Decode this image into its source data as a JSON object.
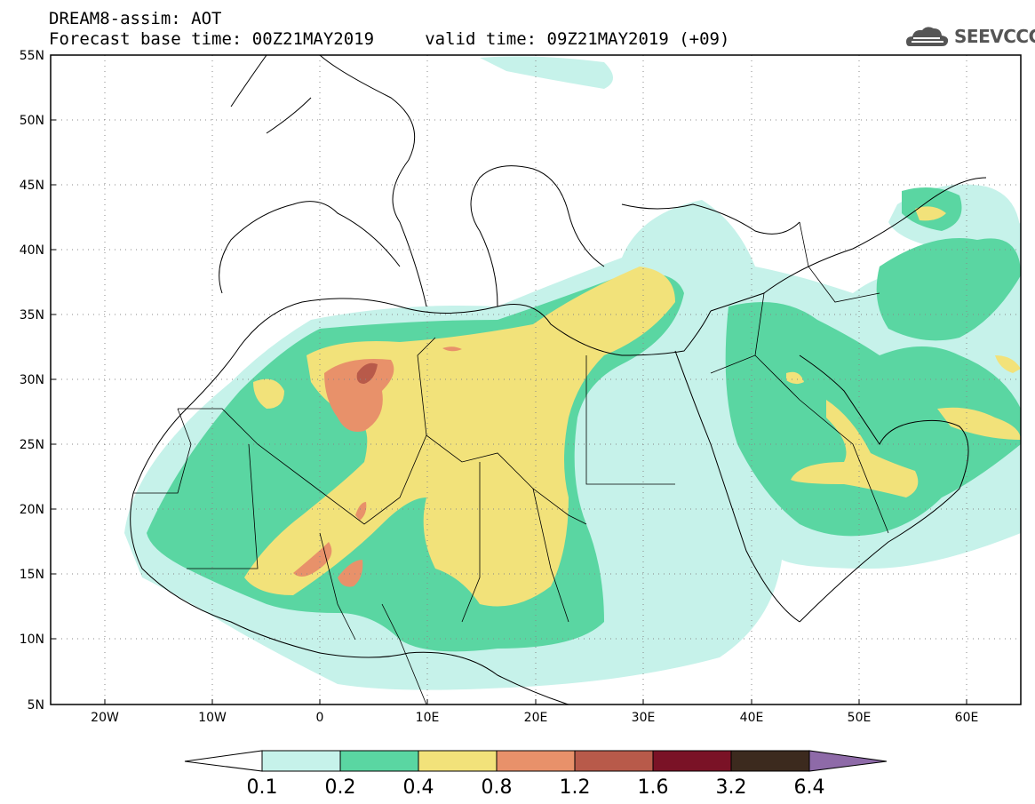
{
  "header": {
    "title_line1": "DREAM8-assim: AOT",
    "title_line2": "Forecast base time: 00Z21MAY2019     valid time: 09Z21MAY2019 (+09)",
    "logo_text": "SEEVCCC",
    "logo_icon": "cloud-icon"
  },
  "map": {
    "lon_range": [
      -25,
      65
    ],
    "lat_range": [
      5,
      55
    ],
    "lat_ticks": [
      "55N",
      "50N",
      "45N",
      "40N",
      "35N",
      "30N",
      "25N",
      "20N",
      "15N",
      "10N",
      "5N"
    ],
    "lon_ticks": [
      "20W",
      "10W",
      "0",
      "10E",
      "20E",
      "30E",
      "40E",
      "50E",
      "60E"
    ],
    "gridlines": "dotted"
  },
  "colorbar": {
    "labels": [
      "0.1",
      "0.2",
      "0.4",
      "0.8",
      "1.2",
      "1.6",
      "3.2",
      "6.4"
    ],
    "colors": [
      "#c6f2ea",
      "#5ad6a2",
      "#f2e27a",
      "#e8916a",
      "#b85a4a",
      "#7a1226",
      "#3c2a1e",
      "#8e6aa8"
    ]
  }
}
